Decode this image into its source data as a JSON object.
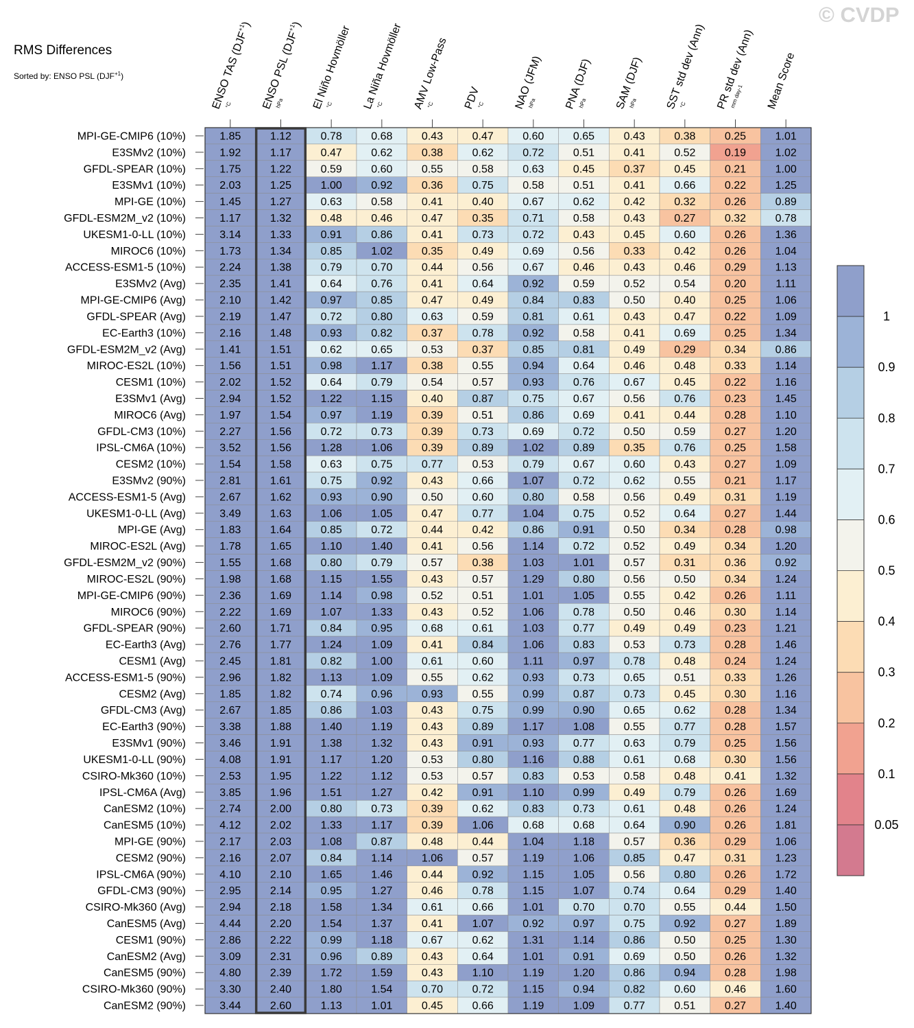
{
  "title": "RMS Differences",
  "subtitle": "Sorted by: ENSO PSL (DJF+1)",
  "watermark": "© CVDP",
  "chart_data": {
    "type": "heatmap",
    "sorted_by_column": "ENSO PSL",
    "columns": [
      {
        "label": "ENSO TAS (DJF+1)",
        "unit": "°C"
      },
      {
        "label": "ENSO PSL (DJF+1)",
        "unit": "hPa"
      },
      {
        "label": "El Niño Hovmöller",
        "unit": "°C"
      },
      {
        "label": "La Niña Hovmöller",
        "unit": "°C"
      },
      {
        "label": "AMV Low-Pass",
        "unit": "°C"
      },
      {
        "label": "PDV",
        "unit": "°C"
      },
      {
        "label": "NAO (JFM)",
        "unit": "hPa"
      },
      {
        "label": "PNA (DJF)",
        "unit": "hPa"
      },
      {
        "label": "SAM (DJF)",
        "unit": "hPa"
      },
      {
        "label": "SST std dev (Ann)",
        "unit": "°C"
      },
      {
        "label": "PR std dev (Ann)",
        "unit": "mm day-1"
      },
      {
        "label": "Mean Score",
        "unit": ""
      }
    ],
    "rows": [
      "MPI-GE-CMIP6 (10%)",
      "E3SMv2 (10%)",
      "GFDL-SPEAR (10%)",
      "E3SMv1 (10%)",
      "MPI-GE (10%)",
      "GFDL-ESM2M_v2 (10%)",
      "UKESM1-0-LL (10%)",
      "MIROC6 (10%)",
      "ACCESS-ESM1-5 (10%)",
      "E3SMv2 (Avg)",
      "MPI-GE-CMIP6 (Avg)",
      "GFDL-SPEAR (Avg)",
      "EC-Earth3 (10%)",
      "GFDL-ESM2M_v2 (Avg)",
      "MIROC-ES2L (10%)",
      "CESM1 (10%)",
      "E3SMv1 (Avg)",
      "MIROC6 (Avg)",
      "GFDL-CM3 (10%)",
      "IPSL-CM6A (10%)",
      "CESM2 (10%)",
      "E3SMv2 (90%)",
      "ACCESS-ESM1-5 (Avg)",
      "UKESM1-0-LL (Avg)",
      "MPI-GE (Avg)",
      "MIROC-ES2L (Avg)",
      "GFDL-ESM2M_v2 (90%)",
      "MIROC-ES2L (90%)",
      "MPI-GE-CMIP6 (90%)",
      "MIROC6 (90%)",
      "GFDL-SPEAR (90%)",
      "EC-Earth3 (Avg)",
      "CESM1 (Avg)",
      "ACCESS-ESM1-5 (90%)",
      "CESM2 (Avg)",
      "GFDL-CM3 (Avg)",
      "EC-Earth3 (90%)",
      "E3SMv1 (90%)",
      "UKESM1-0-LL (90%)",
      "CSIRO-Mk360 (10%)",
      "IPSL-CM6A (Avg)",
      "CanESM2 (10%)",
      "CanESM5 (10%)",
      "MPI-GE (90%)",
      "CESM2 (90%)",
      "IPSL-CM6A (90%)",
      "GFDL-CM3 (90%)",
      "CSIRO-Mk360 (Avg)",
      "CanESM5 (Avg)",
      "CESM1 (90%)",
      "CanESM2 (Avg)",
      "CanESM5 (90%)",
      "CSIRO-Mk360 (90%)",
      "CanESM2 (90%)"
    ],
    "values": [
      [
        "1.85",
        "1.12",
        "0.78",
        "0.68",
        "0.43",
        "0.47",
        "0.60",
        "0.65",
        "0.43",
        "0.38",
        "0.25",
        "1.01"
      ],
      [
        "1.92",
        "1.17",
        "0.47",
        "0.62",
        "0.38",
        "0.62",
        "0.72",
        "0.51",
        "0.41",
        "0.52",
        "0.19",
        "1.02"
      ],
      [
        "1.75",
        "1.22",
        "0.59",
        "0.60",
        "0.55",
        "0.58",
        "0.63",
        "0.45",
        "0.37",
        "0.45",
        "0.21",
        "1.00"
      ],
      [
        "2.03",
        "1.25",
        "1.00",
        "0.92",
        "0.36",
        "0.75",
        "0.58",
        "0.51",
        "0.41",
        "0.66",
        "0.22",
        "1.25"
      ],
      [
        "1.45",
        "1.27",
        "0.63",
        "0.58",
        "0.41",
        "0.40",
        "0.67",
        "0.62",
        "0.42",
        "0.32",
        "0.26",
        "0.89"
      ],
      [
        "1.17",
        "1.32",
        "0.48",
        "0.46",
        "0.47",
        "0.35",
        "0.71",
        "0.58",
        "0.43",
        "0.27",
        "0.32",
        "0.78"
      ],
      [
        "3.14",
        "1.33",
        "0.91",
        "0.86",
        "0.41",
        "0.73",
        "0.72",
        "0.43",
        "0.45",
        "0.60",
        "0.26",
        "1.36"
      ],
      [
        "1.73",
        "1.34",
        "0.85",
        "1.02",
        "0.35",
        "0.49",
        "0.69",
        "0.56",
        "0.33",
        "0.42",
        "0.26",
        "1.04"
      ],
      [
        "2.24",
        "1.38",
        "0.79",
        "0.70",
        "0.44",
        "0.56",
        "0.67",
        "0.46",
        "0.43",
        "0.46",
        "0.29",
        "1.13"
      ],
      [
        "2.35",
        "1.41",
        "0.64",
        "0.76",
        "0.41",
        "0.64",
        "0.92",
        "0.59",
        "0.52",
        "0.54",
        "0.20",
        "1.11"
      ],
      [
        "2.10",
        "1.42",
        "0.97",
        "0.85",
        "0.47",
        "0.49",
        "0.84",
        "0.83",
        "0.50",
        "0.40",
        "0.25",
        "1.06"
      ],
      [
        "2.19",
        "1.47",
        "0.72",
        "0.80",
        "0.63",
        "0.59",
        "0.81",
        "0.61",
        "0.43",
        "0.47",
        "0.22",
        "1.09"
      ],
      [
        "2.16",
        "1.48",
        "0.93",
        "0.82",
        "0.37",
        "0.78",
        "0.92",
        "0.58",
        "0.41",
        "0.69",
        "0.25",
        "1.34"
      ],
      [
        "1.41",
        "1.51",
        "0.62",
        "0.65",
        "0.53",
        "0.37",
        "0.85",
        "0.81",
        "0.49",
        "0.29",
        "0.34",
        "0.86"
      ],
      [
        "1.56",
        "1.51",
        "0.98",
        "1.17",
        "0.38",
        "0.55",
        "0.94",
        "0.64",
        "0.46",
        "0.48",
        "0.33",
        "1.14"
      ],
      [
        "2.02",
        "1.52",
        "0.64",
        "0.79",
        "0.54",
        "0.57",
        "0.93",
        "0.76",
        "0.67",
        "0.45",
        "0.22",
        "1.16"
      ],
      [
        "2.94",
        "1.52",
        "1.22",
        "1.15",
        "0.40",
        "0.87",
        "0.75",
        "0.67",
        "0.56",
        "0.76",
        "0.23",
        "1.45"
      ],
      [
        "1.97",
        "1.54",
        "0.97",
        "1.19",
        "0.39",
        "0.51",
        "0.86",
        "0.69",
        "0.41",
        "0.44",
        "0.28",
        "1.10"
      ],
      [
        "2.27",
        "1.56",
        "0.72",
        "0.73",
        "0.39",
        "0.73",
        "0.69",
        "0.72",
        "0.50",
        "0.59",
        "0.27",
        "1.20"
      ],
      [
        "3.52",
        "1.56",
        "1.28",
        "1.06",
        "0.39",
        "0.89",
        "1.02",
        "0.89",
        "0.35",
        "0.76",
        "0.25",
        "1.58"
      ],
      [
        "1.54",
        "1.58",
        "0.63",
        "0.75",
        "0.77",
        "0.53",
        "0.79",
        "0.67",
        "0.60",
        "0.43",
        "0.27",
        "1.09"
      ],
      [
        "2.81",
        "1.61",
        "0.75",
        "0.92",
        "0.43",
        "0.66",
        "1.07",
        "0.72",
        "0.62",
        "0.55",
        "0.21",
        "1.17"
      ],
      [
        "2.67",
        "1.62",
        "0.93",
        "0.90",
        "0.50",
        "0.60",
        "0.80",
        "0.58",
        "0.56",
        "0.49",
        "0.31",
        "1.19"
      ],
      [
        "3.49",
        "1.63",
        "1.06",
        "1.05",
        "0.47",
        "0.77",
        "1.04",
        "0.75",
        "0.52",
        "0.64",
        "0.27",
        "1.44"
      ],
      [
        "1.83",
        "1.64",
        "0.85",
        "0.72",
        "0.44",
        "0.42",
        "0.86",
        "0.91",
        "0.50",
        "0.34",
        "0.28",
        "0.98"
      ],
      [
        "1.78",
        "1.65",
        "1.10",
        "1.40",
        "0.41",
        "0.56",
        "1.14",
        "0.72",
        "0.52",
        "0.49",
        "0.34",
        "1.20"
      ],
      [
        "1.55",
        "1.68",
        "0.80",
        "0.79",
        "0.57",
        "0.38",
        "1.03",
        "1.01",
        "0.57",
        "0.31",
        "0.36",
        "0.92"
      ],
      [
        "1.98",
        "1.68",
        "1.15",
        "1.55",
        "0.43",
        "0.57",
        "1.29",
        "0.80",
        "0.56",
        "0.50",
        "0.34",
        "1.24"
      ],
      [
        "2.36",
        "1.69",
        "1.14",
        "0.98",
        "0.52",
        "0.51",
        "1.01",
        "1.05",
        "0.55",
        "0.42",
        "0.26",
        "1.11"
      ],
      [
        "2.22",
        "1.69",
        "1.07",
        "1.33",
        "0.43",
        "0.52",
        "1.06",
        "0.78",
        "0.50",
        "0.46",
        "0.30",
        "1.14"
      ],
      [
        "2.60",
        "1.71",
        "0.84",
        "0.95",
        "0.68",
        "0.61",
        "1.03",
        "0.77",
        "0.49",
        "0.49",
        "0.23",
        "1.21"
      ],
      [
        "2.76",
        "1.77",
        "1.24",
        "1.09",
        "0.41",
        "0.84",
        "1.06",
        "0.83",
        "0.53",
        "0.73",
        "0.28",
        "1.46"
      ],
      [
        "2.45",
        "1.81",
        "0.82",
        "1.00",
        "0.61",
        "0.60",
        "1.11",
        "0.97",
        "0.78",
        "0.48",
        "0.24",
        "1.24"
      ],
      [
        "2.96",
        "1.82",
        "1.13",
        "1.09",
        "0.55",
        "0.62",
        "0.93",
        "0.73",
        "0.65",
        "0.51",
        "0.33",
        "1.26"
      ],
      [
        "1.85",
        "1.82",
        "0.74",
        "0.96",
        "0.93",
        "0.55",
        "0.99",
        "0.87",
        "0.73",
        "0.45",
        "0.30",
        "1.16"
      ],
      [
        "2.67",
        "1.85",
        "0.86",
        "1.03",
        "0.43",
        "0.75",
        "0.99",
        "0.90",
        "0.65",
        "0.62",
        "0.28",
        "1.34"
      ],
      [
        "3.38",
        "1.88",
        "1.40",
        "1.19",
        "0.43",
        "0.89",
        "1.17",
        "1.08",
        "0.55",
        "0.77",
        "0.28",
        "1.57"
      ],
      [
        "3.46",
        "1.91",
        "1.38",
        "1.32",
        "0.43",
        "0.91",
        "0.93",
        "0.77",
        "0.63",
        "0.79",
        "0.25",
        "1.56"
      ],
      [
        "4.08",
        "1.91",
        "1.17",
        "1.20",
        "0.53",
        "0.80",
        "1.16",
        "0.88",
        "0.61",
        "0.68",
        "0.30",
        "1.56"
      ],
      [
        "2.53",
        "1.95",
        "1.22",
        "1.12",
        "0.53",
        "0.57",
        "0.83",
        "0.53",
        "0.58",
        "0.48",
        "0.41",
        "1.32"
      ],
      [
        "3.85",
        "1.96",
        "1.51",
        "1.27",
        "0.42",
        "0.91",
        "1.10",
        "0.99",
        "0.49",
        "0.79",
        "0.26",
        "1.69"
      ],
      [
        "2.74",
        "2.00",
        "0.80",
        "0.73",
        "0.39",
        "0.62",
        "0.83",
        "0.73",
        "0.61",
        "0.48",
        "0.26",
        "1.24"
      ],
      [
        "4.12",
        "2.02",
        "1.33",
        "1.17",
        "0.39",
        "1.06",
        "0.68",
        "0.68",
        "0.64",
        "0.90",
        "0.26",
        "1.81"
      ],
      [
        "2.17",
        "2.03",
        "1.08",
        "0.87",
        "0.48",
        "0.44",
        "1.04",
        "1.18",
        "0.57",
        "0.36",
        "0.29",
        "1.06"
      ],
      [
        "2.16",
        "2.07",
        "0.84",
        "1.14",
        "1.06",
        "0.57",
        "1.19",
        "1.06",
        "0.85",
        "0.47",
        "0.31",
        "1.23"
      ],
      [
        "4.10",
        "2.10",
        "1.65",
        "1.46",
        "0.44",
        "0.92",
        "1.15",
        "1.05",
        "0.56",
        "0.80",
        "0.26",
        "1.72"
      ],
      [
        "2.95",
        "2.14",
        "0.95",
        "1.27",
        "0.46",
        "0.78",
        "1.15",
        "1.07",
        "0.74",
        "0.64",
        "0.29",
        "1.40"
      ],
      [
        "2.94",
        "2.18",
        "1.58",
        "1.34",
        "0.61",
        "0.66",
        "1.01",
        "0.70",
        "0.70",
        "0.55",
        "0.44",
        "1.50"
      ],
      [
        "4.44",
        "2.20",
        "1.54",
        "1.37",
        "0.41",
        "1.07",
        "0.92",
        "0.97",
        "0.75",
        "0.92",
        "0.27",
        "1.89"
      ],
      [
        "2.86",
        "2.22",
        "0.99",
        "1.18",
        "0.67",
        "0.62",
        "1.31",
        "1.14",
        "0.86",
        "0.50",
        "0.25",
        "1.30"
      ],
      [
        "3.09",
        "2.31",
        "0.96",
        "0.89",
        "0.43",
        "0.64",
        "1.01",
        "0.91",
        "0.69",
        "0.50",
        "0.26",
        "1.32"
      ],
      [
        "4.80",
        "2.39",
        "1.72",
        "1.59",
        "0.43",
        "1.10",
        "1.19",
        "1.20",
        "0.86",
        "0.94",
        "0.28",
        "1.98"
      ],
      [
        "3.30",
        "2.40",
        "1.80",
        "1.54",
        "0.70",
        "0.72",
        "1.15",
        "0.94",
        "0.82",
        "0.60",
        "0.46",
        "1.60"
      ],
      [
        "3.44",
        "2.60",
        "1.13",
        "1.01",
        "0.45",
        "0.66",
        "1.19",
        "1.09",
        "0.77",
        "0.51",
        "0.27",
        "1.40"
      ]
    ],
    "colorbar": {
      "tick_labels": [
        "1",
        "0.9",
        "0.8",
        "0.7",
        "0.6",
        "0.5",
        "0.4",
        "0.3",
        "0.2",
        "0.1",
        "0.05"
      ],
      "colors": [
        "#8f9fcb",
        "#9cb3d7",
        "#b5cfe4",
        "#cde3ee",
        "#e2f0f4",
        "#f3f3ec",
        "#fcefd2",
        "#fcdcb4",
        "#f8c3a0",
        "#f1a290",
        "#e2838b",
        "#d37a8f"
      ]
    }
  }
}
